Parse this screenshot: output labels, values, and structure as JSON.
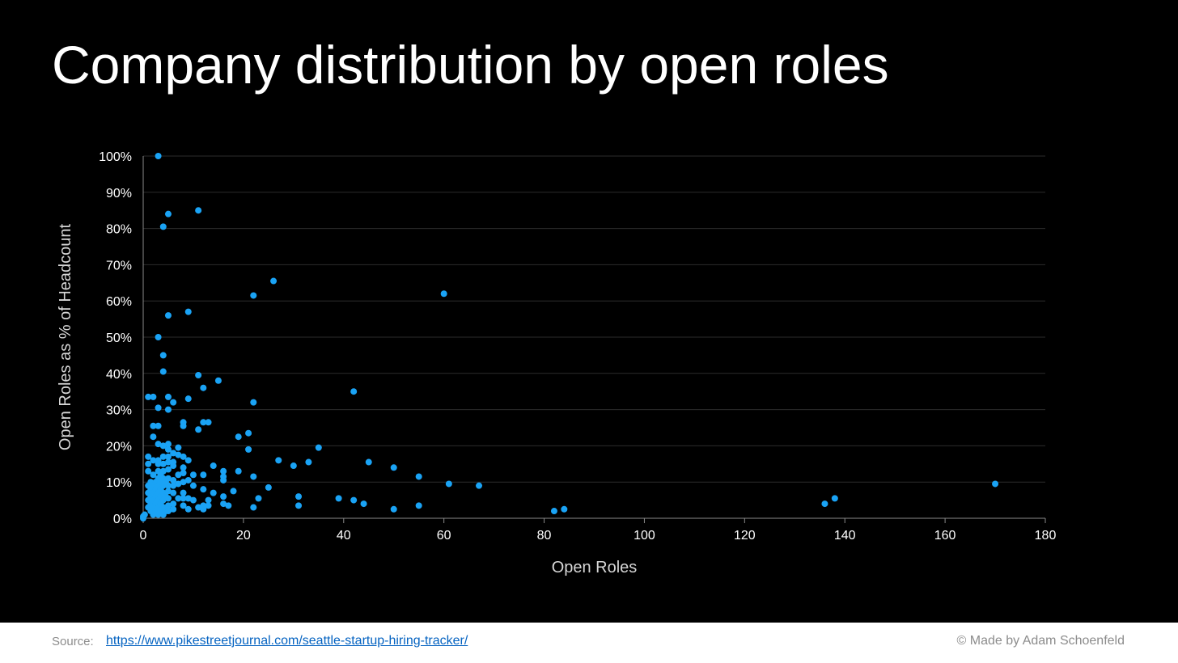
{
  "slide": {
    "title": "Company distribution by open roles",
    "background": "#000000"
  },
  "footer": {
    "source_label": "Source:",
    "source_url": "https://www.pikestreetjournal.com/seattle-startup-hiring-tracker/",
    "credit": "© Made by Adam Schoenfeld"
  },
  "chart_data": {
    "type": "scatter",
    "title": "",
    "xlabel": "Open Roles",
    "ylabel": "Open Roles as % of Headcount",
    "xlim": [
      0,
      180
    ],
    "ylim": [
      0,
      100
    ],
    "x_ticks": [
      "0",
      "20",
      "40",
      "60",
      "80",
      "100",
      "120",
      "140",
      "160",
      "180"
    ],
    "y_ticks": [
      "0%",
      "10%",
      "20%",
      "30%",
      "40%",
      "50%",
      "60%",
      "70%",
      "80%",
      "90%",
      "100%"
    ],
    "grid": true,
    "legend": "none",
    "marker_color": "#1aa3f5",
    "series": [
      {
        "points": [
          [
            0,
            0
          ],
          [
            0,
            0.5
          ],
          [
            0.3,
            1
          ],
          [
            1,
            3
          ],
          [
            1,
            5
          ],
          [
            1,
            7
          ],
          [
            1,
            9
          ],
          [
            1,
            13
          ],
          [
            1,
            15
          ],
          [
            1,
            17
          ],
          [
            1,
            33.5
          ],
          [
            1.5,
            2
          ],
          [
            1.5,
            4
          ],
          [
            1.5,
            6
          ],
          [
            1.5,
            8
          ],
          [
            1.5,
            10
          ],
          [
            2,
            1
          ],
          [
            2,
            3
          ],
          [
            2,
            5
          ],
          [
            2,
            7
          ],
          [
            2,
            9
          ],
          [
            2,
            12
          ],
          [
            2,
            16
          ],
          [
            2,
            22.5
          ],
          [
            2,
            25.5
          ],
          [
            2,
            33.5
          ],
          [
            2.5,
            2
          ],
          [
            2.5,
            4
          ],
          [
            2.5,
            6
          ],
          [
            2.5,
            8
          ],
          [
            2.5,
            10
          ],
          [
            3,
            1
          ],
          [
            3,
            3
          ],
          [
            3,
            5
          ],
          [
            3,
            7
          ],
          [
            3,
            9
          ],
          [
            3,
            11
          ],
          [
            3,
            13
          ],
          [
            3,
            15
          ],
          [
            3,
            16
          ],
          [
            3,
            20.5
          ],
          [
            3,
            25.5
          ],
          [
            3,
            30.5
          ],
          [
            3,
            50
          ],
          [
            3,
            100
          ],
          [
            3.5,
            2
          ],
          [
            3.5,
            4
          ],
          [
            3.5,
            6
          ],
          [
            3.5,
            8
          ],
          [
            3.5,
            10
          ],
          [
            3.5,
            12
          ],
          [
            4,
            1
          ],
          [
            4,
            3
          ],
          [
            4,
            5
          ],
          [
            4,
            7
          ],
          [
            4,
            9
          ],
          [
            4,
            11
          ],
          [
            4,
            13
          ],
          [
            4,
            15
          ],
          [
            4,
            17
          ],
          [
            4,
            20
          ],
          [
            4,
            40.5
          ],
          [
            4,
            45
          ],
          [
            4,
            80.5
          ],
          [
            4.5,
            2
          ],
          [
            4.5,
            6
          ],
          [
            4.5,
            10
          ],
          [
            5,
            2
          ],
          [
            5,
            3.5
          ],
          [
            5,
            5.5
          ],
          [
            5,
            7.5
          ],
          [
            5,
            9
          ],
          [
            5,
            11
          ],
          [
            5,
            13.5
          ],
          [
            5,
            15.5
          ],
          [
            5,
            17
          ],
          [
            5,
            19
          ],
          [
            5,
            20.5
          ],
          [
            5,
            30
          ],
          [
            5,
            33.5
          ],
          [
            5,
            56
          ],
          [
            5,
            84
          ],
          [
            6,
            2.5
          ],
          [
            6,
            4
          ],
          [
            6,
            7
          ],
          [
            6,
            9
          ],
          [
            6,
            10.5
          ],
          [
            6,
            14.5
          ],
          [
            6,
            15.5
          ],
          [
            6,
            18
          ],
          [
            6,
            32
          ],
          [
            7,
            5.5
          ],
          [
            7,
            9.5
          ],
          [
            7,
            12
          ],
          [
            7,
            17.5
          ],
          [
            7,
            19.5
          ],
          [
            8,
            3.5
          ],
          [
            8,
            5.5
          ],
          [
            8,
            7
          ],
          [
            8,
            10
          ],
          [
            8,
            12.5
          ],
          [
            8,
            14
          ],
          [
            8,
            17
          ],
          [
            8,
            25.5
          ],
          [
            8,
            26.5
          ],
          [
            9,
            2.5
          ],
          [
            9,
            5.5
          ],
          [
            9,
            10.5
          ],
          [
            9,
            16
          ],
          [
            9,
            33
          ],
          [
            9,
            57
          ],
          [
            10,
            5
          ],
          [
            10,
            9
          ],
          [
            10,
            12
          ],
          [
            11,
            3
          ],
          [
            11,
            24.5
          ],
          [
            11,
            39.5
          ],
          [
            11,
            85
          ],
          [
            12,
            2.5
          ],
          [
            12,
            3.5
          ],
          [
            12,
            8
          ],
          [
            12,
            12
          ],
          [
            12,
            26.5
          ],
          [
            12,
            36
          ],
          [
            13,
            3.5
          ],
          [
            13,
            5
          ],
          [
            13,
            26.5
          ],
          [
            14,
            7
          ],
          [
            14,
            14.5
          ],
          [
            15,
            38
          ],
          [
            16,
            4
          ],
          [
            16,
            6
          ],
          [
            16,
            10.5
          ],
          [
            16,
            11.5
          ],
          [
            16,
            13
          ],
          [
            17,
            3.5
          ],
          [
            18,
            7.5
          ],
          [
            19,
            13
          ],
          [
            19,
            22.5
          ],
          [
            21,
            19
          ],
          [
            21,
            23.5
          ],
          [
            22,
            3
          ],
          [
            22,
            11.5
          ],
          [
            22,
            32
          ],
          [
            22,
            61.5
          ],
          [
            23,
            5.5
          ],
          [
            25,
            8.5
          ],
          [
            26,
            65.5
          ],
          [
            27,
            16
          ],
          [
            30,
            14.5
          ],
          [
            31,
            3.5
          ],
          [
            31,
            6
          ],
          [
            33,
            15.5
          ],
          [
            35,
            19.5
          ],
          [
            39,
            5.5
          ],
          [
            42,
            5
          ],
          [
            42,
            35
          ],
          [
            44,
            4
          ],
          [
            45,
            15.5
          ],
          [
            50,
            2.5
          ],
          [
            50,
            14
          ],
          [
            55,
            3.5
          ],
          [
            55,
            11.5
          ],
          [
            60,
            62
          ],
          [
            61,
            9.5
          ],
          [
            67,
            9
          ],
          [
            82,
            2
          ],
          [
            84,
            2.5
          ],
          [
            136,
            4
          ],
          [
            138,
            5.5
          ],
          [
            170,
            9.5
          ]
        ]
      }
    ]
  }
}
